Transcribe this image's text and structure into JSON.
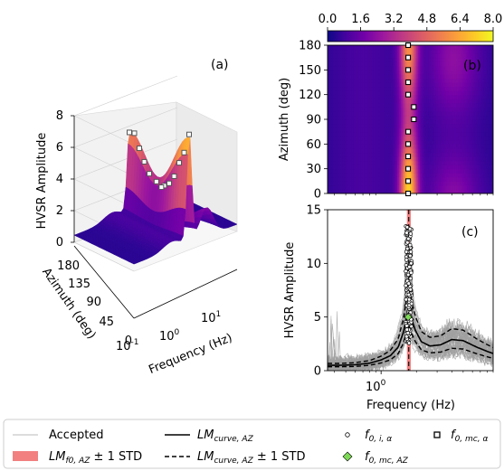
{
  "colors": {
    "plasma": [
      "#0d0887",
      "#46039f",
      "#7201a8",
      "#9c179e",
      "#bd3786",
      "#d8576b",
      "#ed7953",
      "#fb9f3a",
      "#fdca26",
      "#f0f921"
    ],
    "accepted": "#a0a0a0",
    "std_band": "#f28080",
    "f0_mc_az": "#7ed957"
  },
  "chart_data": [
    {
      "id": "a",
      "type": "surface3d",
      "panel_label": "(a)",
      "zlabel": "HVSR Amplitude",
      "ylabel": "Azimuth (deg)",
      "xlabel": "Frequency (Hz)",
      "z_ticks": [
        "0",
        "2",
        "4",
        "6",
        "8"
      ],
      "az_ticks": [
        "0",
        "45",
        "90",
        "135",
        "180"
      ],
      "freq_ticks": [
        "10",
        "10",
        "10"
      ],
      "freq_tick_exps": [
        "-1",
        "0",
        "1"
      ],
      "zlim": [
        0,
        8.5
      ],
      "peak_points": [
        {
          "azimuth": 0,
          "frequency": 1.7,
          "amplitude": 7.3
        },
        {
          "azimuth": 15,
          "frequency": 1.7,
          "amplitude": 6.0
        },
        {
          "azimuth": 30,
          "frequency": 1.7,
          "amplitude": 5.2
        },
        {
          "azimuth": 45,
          "frequency": 1.7,
          "amplitude": 4.2
        },
        {
          "azimuth": 60,
          "frequency": 1.7,
          "amplitude": 3.6
        },
        {
          "azimuth": 75,
          "frequency": 1.7,
          "amplitude": 3.3
        },
        {
          "azimuth": 90,
          "frequency": 1.9,
          "amplitude": 3.0
        },
        {
          "azimuth": 105,
          "frequency": 1.9,
          "amplitude": 3.2
        },
        {
          "azimuth": 120,
          "frequency": 1.7,
          "amplitude": 3.6
        },
        {
          "azimuth": 135,
          "frequency": 1.7,
          "amplitude": 4.2
        },
        {
          "azimuth": 150,
          "frequency": 1.7,
          "amplitude": 4.9
        },
        {
          "azimuth": 165,
          "frequency": 1.7,
          "amplitude": 5.7
        },
        {
          "azimuth": 180,
          "frequency": 1.7,
          "amplitude": 5.6
        }
      ]
    },
    {
      "id": "b",
      "type": "heatmap",
      "panel_label": "(b)",
      "ylabel": "Azimuth (deg)",
      "y_ticks": [
        "0",
        "30",
        "60",
        "90",
        "120",
        "150",
        "180"
      ],
      "ylim": [
        0,
        180
      ],
      "colorbar": {
        "ticks": [
          "0.0",
          "1.6",
          "3.2",
          "4.8",
          "6.4",
          "8.0"
        ],
        "range": [
          0,
          8
        ],
        "position": "top"
      },
      "peak_marks": [
        {
          "azimuth": 0,
          "frequency": 1.7
        },
        {
          "azimuth": 15,
          "frequency": 1.7
        },
        {
          "azimuth": 30,
          "frequency": 1.7
        },
        {
          "azimuth": 45,
          "frequency": 1.7
        },
        {
          "azimuth": 60,
          "frequency": 1.7
        },
        {
          "azimuth": 75,
          "frequency": 1.7
        },
        {
          "azimuth": 90,
          "frequency": 1.9
        },
        {
          "azimuth": 105,
          "frequency": 1.9
        },
        {
          "azimuth": 120,
          "frequency": 1.7
        },
        {
          "azimuth": 135,
          "frequency": 1.7
        },
        {
          "azimuth": 150,
          "frequency": 1.7
        },
        {
          "azimuth": 165,
          "frequency": 1.7
        },
        {
          "azimuth": 180,
          "frequency": 1.7
        }
      ]
    },
    {
      "id": "c",
      "type": "line",
      "panel_label": "(c)",
      "ylabel": "HVSR Amplitude",
      "xlabel": "Frequency (Hz)",
      "x_scale": "log",
      "xlim": [
        0.35,
        9
      ],
      "ylim": [
        0,
        15
      ],
      "y_ticks": [
        "0",
        "5",
        "10",
        "15"
      ],
      "x_ticks": [
        {
          "value": 1,
          "base": "10",
          "exp": "0"
        }
      ],
      "grid": false,
      "median_curve": {
        "x": [
          0.35,
          0.45,
          0.6,
          0.8,
          1.0,
          1.2,
          1.4,
          1.55,
          1.65,
          1.72,
          1.8,
          1.95,
          2.2,
          2.6,
          3.2,
          4,
          5,
          6.5,
          8,
          9
        ],
        "y": [
          0.5,
          0.5,
          0.55,
          0.7,
          1.0,
          1.4,
          2.2,
          3.6,
          5.0,
          5.6,
          5.0,
          3.8,
          2.7,
          2.3,
          2.4,
          2.9,
          2.8,
          2.2,
          1.8,
          1.6
        ]
      },
      "f0_lognormal_median": 1.72,
      "f0_std_band": [
        1.66,
        1.79
      ],
      "f0_mc_az": {
        "frequency": 1.7,
        "amplitude": 5.0
      }
    }
  ],
  "legend": {
    "accepted": "Accepted",
    "lm_curve": "LM",
    "lm_curve_sub": "curve, AZ",
    "lm_f0": "LM",
    "lm_f0_sub": "f0, AZ",
    "lm_f0_suffix": " ± 1 STD",
    "lm_curve_std": "LM",
    "lm_curve_std_sub": "curve, AZ",
    "lm_curve_std_suffix": " ± 1 STD",
    "f0_i": "f",
    "f0_i_sub": "0, i, α",
    "f0_mc": "f",
    "f0_mc_sub": "0, mc, α",
    "f0_mc_az": "f",
    "f0_mc_az_sub": "0, mc, AZ"
  }
}
